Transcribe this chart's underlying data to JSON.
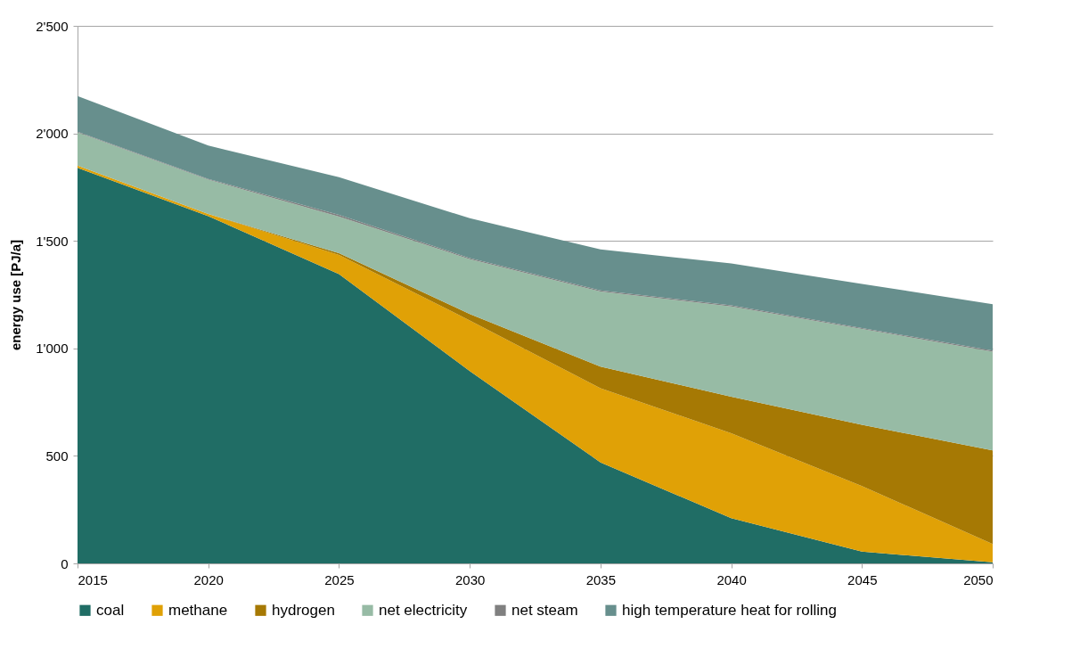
{
  "chart_data": {
    "type": "area",
    "stacked": true,
    "ylabel": "energy use [PJ/a]",
    "x": [
      2015,
      2020,
      2025,
      2030,
      2035,
      2040,
      2045,
      2050
    ],
    "xlim": [
      2015,
      2050
    ],
    "xticks": [
      2015,
      2020,
      2025,
      2030,
      2035,
      2040,
      2045,
      2050
    ],
    "ylim": [
      0,
      2500
    ],
    "yticks": [
      0,
      500,
      {
        "value": 1000,
        "label": "1'000"
      },
      {
        "value": 1500,
        "label": "1'500"
      },
      {
        "value": 2000,
        "label": "2'000"
      },
      {
        "value": 2500,
        "label": "2'500"
      }
    ],
    "grid": "y",
    "legend": "bottom",
    "series": [
      {
        "name": "coal",
        "color": "#206d65",
        "values": [
          1840,
          1615,
          1345,
          895,
          470,
          210,
          55,
          5
        ]
      },
      {
        "name": "methane",
        "color": "#e0a106",
        "values": [
          10,
          10,
          90,
          235,
          345,
          395,
          305,
          85
        ]
      },
      {
        "name": "hydrogen",
        "color": "#a67904",
        "values": [
          0,
          0,
          8,
          30,
          100,
          170,
          285,
          435
        ]
      },
      {
        "name": "net electricity",
        "color": "#97bba5",
        "values": [
          155,
          160,
          170,
          255,
          350,
          420,
          445,
          460
        ]
      },
      {
        "name": "net steam",
        "color": "#808080",
        "values": [
          3,
          3,
          8,
          5,
          5,
          5,
          5,
          5
        ]
      },
      {
        "name": "high temperature heat for rolling",
        "color": "#678f8d",
        "values": [
          165,
          155,
          175,
          185,
          190,
          195,
          205,
          215
        ]
      }
    ]
  }
}
